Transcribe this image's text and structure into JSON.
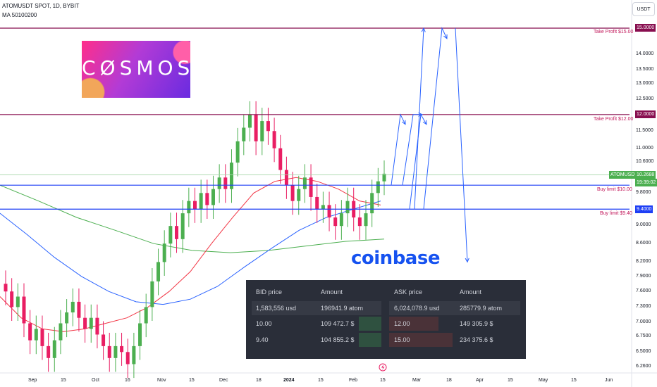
{
  "header": {
    "symbol_line": "ATOMUSDT SPOT, 1D, BYBIT",
    "indicator_line": "MA 50100200",
    "currency_button": "USDT"
  },
  "logos": {
    "cosmos_text": "CØSMOS",
    "coinbase_text": "coinbase"
  },
  "colors": {
    "bull": "#089981",
    "bear": "#f23645",
    "candle_up": "#4caf50",
    "candle_down": "#e91e63",
    "ma50": "#f23645",
    "ma100": "#2962ff",
    "ma200": "#4caf50",
    "take_profit_line": "#880e4f",
    "buy_limit_line": "#1e3ff5",
    "arrow": "#2962ff"
  },
  "price_axis": {
    "labels": [
      "15.0000",
      "14.0000",
      "13.5000",
      "13.0000",
      "12.5000",
      "12.0000",
      "11.5000",
      "11.0000",
      "10.6000",
      "10.2688",
      "9.8000",
      "9.4000",
      "9.0000",
      "8.6000",
      "8.2000",
      "7.9000",
      "7.6000",
      "7.3000",
      "7.0000",
      "6.7500",
      "6.5000",
      "6.2600"
    ],
    "current_price": "10.2688",
    "countdown": "19:39:02",
    "current_symbol_tag": "ATOMUSDT"
  },
  "time_axis": {
    "labels": [
      "Sep",
      "15",
      "Oct",
      "16",
      "Nov",
      "15",
      "Dec",
      "18",
      "2024",
      "15",
      "Feb",
      "15",
      "Mar",
      "18",
      "Apr",
      "15",
      "May",
      "15",
      "Jun"
    ]
  },
  "annotations": {
    "tp2": "Take Profit $15.00",
    "tp1": "Take Profit $12.00",
    "bl1": "Buy limit $10.00",
    "bl2": "Buy limit $9.40"
  },
  "order_book": {
    "headers": [
      "BID price",
      "Amount",
      "ASK price",
      "Amount"
    ],
    "rows": [
      [
        "1,583,556 usd",
        "196941.9 atom",
        "6,024,078.9 usd",
        "285779.9 atom"
      ],
      [
        "10.00",
        "109 472.7 $",
        "12.00",
        "149 305.9 $"
      ],
      [
        "9.40",
        "104 855.2 $",
        "15.00",
        "234 375.6 $"
      ]
    ]
  },
  "chart_data": {
    "type": "candlestick",
    "title": "ATOMUSDT SPOT, 1D, BYBIT",
    "ylim": [
      6.2,
      15.2
    ],
    "y_scale": "log",
    "levels": [
      {
        "name": "Take Profit $15.00",
        "value": 15.0
      },
      {
        "name": "Take Profit $12.00",
        "value": 12.0
      },
      {
        "name": "Buy limit $10.00",
        "value": 10.0
      },
      {
        "name": "Buy limit $9.40",
        "value": 9.4
      }
    ],
    "close_path": [
      7.6,
      7.3,
      7.5,
      7.0,
      6.7,
      6.9,
      6.6,
      6.4,
      6.7,
      7.0,
      7.2,
      7.4,
      7.1,
      6.9,
      7.1,
      6.8,
      6.6,
      6.4,
      6.6,
      6.5,
      6.3,
      6.6,
      7.0,
      7.3,
      7.8,
      8.2,
      8.6,
      9.0,
      8.7,
      9.3,
      9.6,
      9.4,
      9.8,
      9.5,
      9.9,
      10.2,
      9.9,
      10.6,
      11.2,
      11.6,
      12.0,
      11.2,
      11.8,
      11.5,
      11.0,
      10.4,
      10.0,
      9.6,
      9.9,
      10.2,
      9.7,
      9.4,
      9.5,
      9.2,
      9.0,
      9.3,
      9.6,
      9.2,
      9.0,
      9.3,
      9.8,
      10.1,
      10.3
    ],
    "ma50": [
      7.5,
      7.1,
      6.9,
      6.85,
      6.9,
      7.0,
      7.1,
      7.3,
      7.6,
      8.0,
      8.6,
      9.2,
      9.8,
      10.1,
      10.2,
      10.1,
      9.9,
      9.6,
      9.5
    ],
    "ma100": [
      9.3,
      8.8,
      8.3,
      7.9,
      7.6,
      7.4,
      7.35,
      7.45,
      7.7,
      8.1,
      8.5,
      8.9,
      9.2,
      9.4,
      9.6
    ],
    "ma200": [
      10.0,
      9.6,
      9.2,
      8.9,
      8.6,
      8.45,
      8.4,
      8.45,
      8.55,
      8.65,
      8.7
    ]
  }
}
